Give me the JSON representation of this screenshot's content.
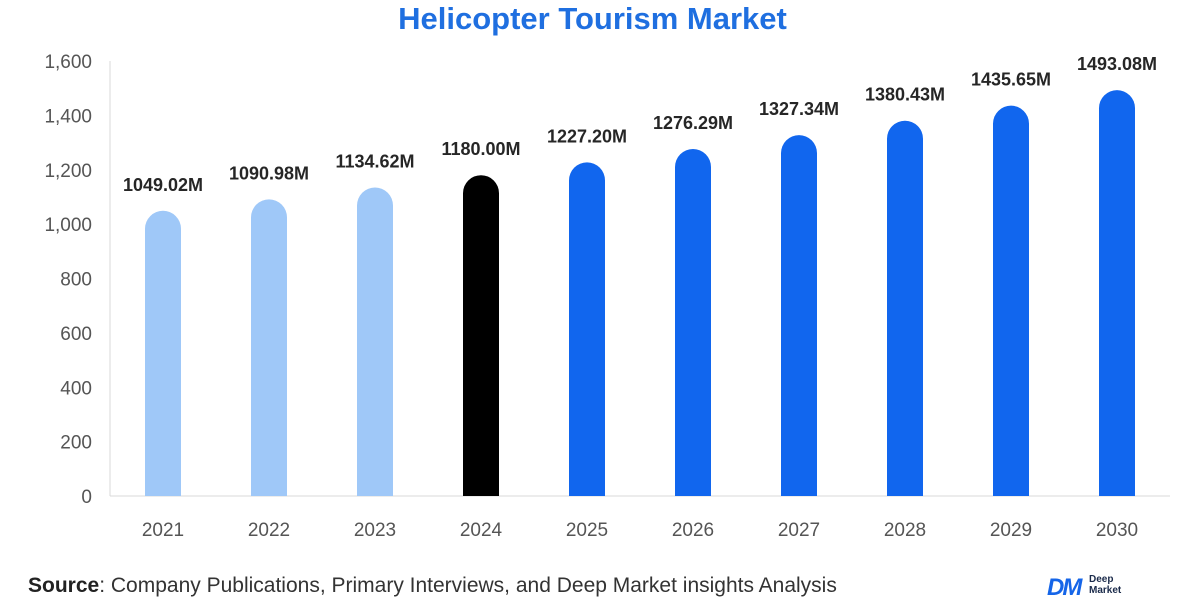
{
  "chart_data": {
    "type": "bar",
    "title": "Helicopter Tourism Market",
    "categories": [
      "2021",
      "2022",
      "2023",
      "2024",
      "2025",
      "2026",
      "2027",
      "2028",
      "2029",
      "2030"
    ],
    "values": [
      1049.02,
      1090.98,
      1134.62,
      1180.0,
      1227.2,
      1276.29,
      1327.34,
      1380.43,
      1435.65,
      1493.08
    ],
    "data_labels": [
      "1049.02M",
      "1090.98M",
      "1134.62M",
      "1180.00M",
      "1227.20M",
      "1276.29M",
      "1327.34M",
      "1380.43M",
      "1435.65M",
      "1493.08M"
    ],
    "yticks": [
      "0",
      "200",
      "400",
      "600",
      "800",
      "1,000",
      "1,200",
      "1,400",
      "1,600"
    ],
    "ylim": [
      0,
      1600
    ],
    "xlabel": "",
    "ylabel": "",
    "grid": false,
    "bar_colors": [
      "#9fc8f8",
      "#9fc8f8",
      "#9fc8f8",
      "#000000",
      "#1166ee",
      "#1166ee",
      "#1166ee",
      "#1166ee",
      "#1166ee",
      "#1166ee"
    ]
  },
  "footer": {
    "source_label": "Source",
    "source_text": ": Company Publications, Primary Interviews, and Deep Market insights Analysis"
  },
  "logo": {
    "mark": "DM",
    "line1": "Deep",
    "line2": "Market",
    "accent": "#1565e8"
  }
}
